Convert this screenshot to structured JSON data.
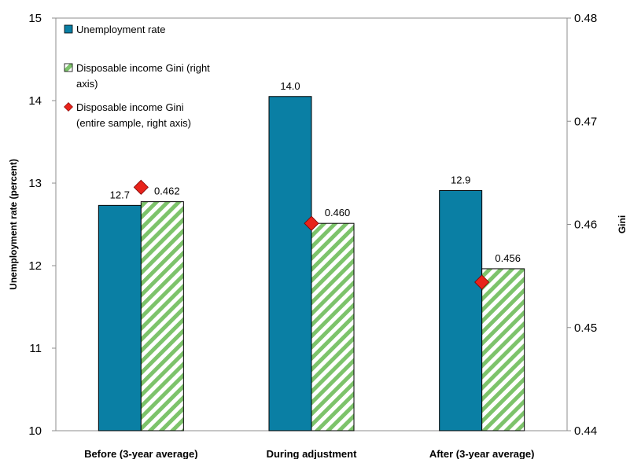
{
  "chart_data": {
    "type": "bar",
    "categories": [
      "Before (3-year average)",
      "During adjustment",
      "After (3-year average)"
    ],
    "series": [
      {
        "name": "Unemployment rate",
        "axis": "left",
        "style": "bar",
        "color": "#0A7FA4",
        "values": [
          12.73,
          14.05,
          12.91
        ],
        "data_labels": [
          "12.7",
          "14.0",
          "12.9"
        ]
      },
      {
        "name": "Disposable income Gini (right axis)",
        "axis": "right",
        "style": "hatched-bar",
        "color": "#7DC36B",
        "values": [
          0.4622,
          0.4601,
          0.4557
        ],
        "data_labels": [
          "0.462",
          "0.460",
          "0.456"
        ]
      },
      {
        "name": "Disposable income Gini (entire sample, right axis)",
        "axis": "right",
        "style": "diamond-marker",
        "color": "#E8231B",
        "values": [
          0.4636,
          0.4601,
          0.4544
        ]
      }
    ],
    "legend_lines": [
      [
        "Unemployment  rate"
      ],
      [
        "Disposable income Gini  (right",
        "axis)"
      ],
      [
        "Disposable income Gini",
        "(entire sample, right axis)"
      ]
    ],
    "y_left": {
      "label": "Unemployment rate (percent)",
      "ylim": [
        10,
        15
      ],
      "ticks": [
        "10",
        "11",
        "12",
        "13",
        "14",
        "15"
      ]
    },
    "y_right": {
      "label": "Gini",
      "ylim": [
        0.44,
        0.48
      ],
      "ticks": [
        "0.44",
        "0.45",
        "0.46",
        "0.47",
        "0.48"
      ]
    },
    "xlabel": "",
    "grid": false,
    "legend_position": "top-left"
  }
}
